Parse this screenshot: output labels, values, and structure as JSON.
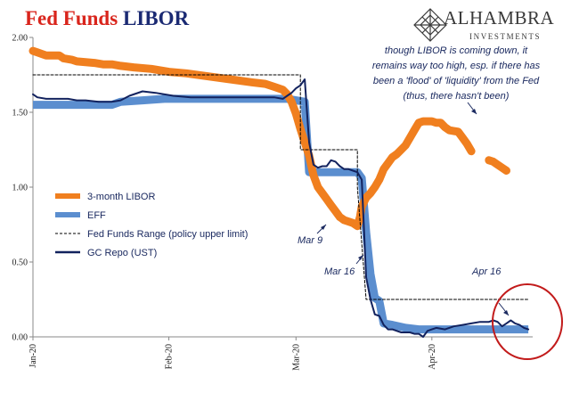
{
  "header": {
    "title_part1": "Fed Funds",
    "title_part2": "LIBOR",
    "logo_name": "ALHAMBRA",
    "logo_sub": "INVESTMENTS",
    "logo_icon": "diamond-lattice-icon"
  },
  "colors": {
    "title_red": "#d9251c",
    "title_navy": "#1b2a73",
    "libor": "#f07f1f",
    "effr": "#5b8ecf",
    "gc_repo": "#12225e",
    "range": "#000000",
    "circle": "#c21b1b"
  },
  "chart_data": {
    "type": "line",
    "title": "Fed Funds LIBOR",
    "ylim": [
      0,
      2
    ],
    "y_ticks": [
      "0.00",
      "0.50",
      "1.00",
      "1.50",
      "2.00"
    ],
    "x_ticks": [
      "Jan-20",
      "Feb-20",
      "Mar-20",
      "Apr-20"
    ],
    "x_tick_days": [
      0,
      31,
      60,
      91
    ],
    "x_range_days": [
      0,
      114
    ],
    "grid": false,
    "legend_position": "middle-left",
    "series": [
      {
        "name": "3-month LIBOR",
        "color": "#f07f1f",
        "width": 9,
        "segments": [
          [
            [
              0,
              1.91
            ],
            [
              1,
              1.9
            ],
            [
              2,
              1.89
            ],
            [
              3,
              1.88
            ],
            [
              6,
              1.88
            ],
            [
              7,
              1.86
            ],
            [
              9,
              1.85
            ],
            [
              10,
              1.84
            ],
            [
              14,
              1.83
            ],
            [
              16,
              1.82
            ],
            [
              18,
              1.82
            ],
            [
              20,
              1.81
            ],
            [
              23,
              1.8
            ],
            [
              27,
              1.79
            ],
            [
              31,
              1.77
            ],
            [
              35,
              1.76
            ],
            [
              40,
              1.74
            ],
            [
              45,
              1.72
            ],
            [
              50,
              1.7
            ],
            [
              53,
              1.69
            ],
            [
              55,
              1.67
            ],
            [
              57,
              1.65
            ],
            [
              58,
              1.62
            ],
            [
              59,
              1.57
            ],
            [
              60,
              1.49
            ],
            [
              61,
              1.39
            ],
            [
              62,
              1.3
            ],
            [
              63,
              1.21
            ],
            [
              64,
              1.08
            ],
            [
              65,
              1.0
            ],
            [
              66,
              0.96
            ],
            [
              67,
              0.92
            ],
            [
              68,
              0.88
            ],
            [
              69,
              0.84
            ],
            [
              70,
              0.8
            ],
            [
              71,
              0.78
            ],
            [
              72,
              0.77
            ],
            [
              73,
              0.76
            ],
            [
              74,
              0.74
            ],
            [
              74.6,
              0.8
            ],
            [
              75,
              0.87
            ],
            [
              76,
              0.93
            ],
            [
              77,
              0.96
            ],
            [
              78,
              1.0
            ],
            [
              79,
              1.05
            ],
            [
              80,
              1.12
            ],
            [
              81,
              1.16
            ],
            [
              82,
              1.2
            ],
            [
              83,
              1.22
            ],
            [
              84,
              1.25
            ],
            [
              85,
              1.28
            ],
            [
              86,
              1.33
            ],
            [
              87,
              1.38
            ],
            [
              88,
              1.43
            ],
            [
              89,
              1.44
            ],
            [
              91,
              1.44
            ],
            [
              92,
              1.43
            ],
            [
              93,
              1.43
            ],
            [
              94,
              1.4
            ],
            [
              95,
              1.38
            ],
            [
              97,
              1.37
            ],
            [
              98,
              1.33
            ],
            [
              99,
              1.29
            ],
            [
              100,
              1.24
            ]
          ],
          [
            [
              104,
              1.18
            ],
            [
              105,
              1.17
            ],
            [
              106,
              1.15
            ],
            [
              107,
              1.13
            ],
            [
              108,
              1.11
            ]
          ]
        ]
      },
      {
        "name": "EFF",
        "color": "#5b8ecf",
        "width": 9,
        "segments": [
          [
            [
              0,
              1.55
            ],
            [
              5,
              1.55
            ],
            [
              10,
              1.55
            ],
            [
              15,
              1.55
            ],
            [
              18,
              1.55
            ],
            [
              20,
              1.57
            ],
            [
              25,
              1.58
            ],
            [
              30,
              1.59
            ],
            [
              35,
              1.59
            ],
            [
              40,
              1.59
            ],
            [
              45,
              1.59
            ],
            [
              50,
              1.59
            ],
            [
              55,
              1.59
            ],
            [
              58,
              1.59
            ],
            [
              60,
              1.58
            ],
            [
              62,
              1.57
            ],
            [
              63,
              1.1
            ],
            [
              66,
              1.1
            ],
            [
              70,
              1.1
            ],
            [
              74,
              1.1
            ],
            [
              75,
              1.06
            ],
            [
              76,
              0.7
            ],
            [
              77,
              0.42
            ],
            [
              78,
              0.26
            ],
            [
              79,
              0.24
            ],
            [
              80,
              0.09
            ],
            [
              82,
              0.08
            ],
            [
              85,
              0.06
            ],
            [
              88,
              0.05
            ],
            [
              92,
              0.05
            ],
            [
              96,
              0.05
            ],
            [
              100,
              0.05
            ],
            [
              104,
              0.05
            ],
            [
              108,
              0.05
            ],
            [
              111,
              0.05
            ],
            [
              113,
              0.05
            ]
          ]
        ]
      },
      {
        "name": "Fed Funds Range (policy upper limit)",
        "color": "#000000",
        "dashed": true,
        "segments": [
          [
            [
              0,
              1.75
            ],
            [
              61,
              1.75
            ],
            [
              61,
              1.25
            ],
            [
              74,
              1.25
            ],
            [
              74,
              1.0
            ],
            [
              76,
              0.25
            ],
            [
              113,
              0.25
            ]
          ]
        ]
      },
      {
        "name": "GC Repo (UST)",
        "color": "#12225e",
        "width": 2,
        "segments": [
          [
            [
              0,
              1.62
            ],
            [
              1,
              1.6
            ],
            [
              3,
              1.59
            ],
            [
              5,
              1.59
            ],
            [
              8,
              1.59
            ],
            [
              10,
              1.58
            ],
            [
              12,
              1.58
            ],
            [
              15,
              1.57
            ],
            [
              18,
              1.57
            ],
            [
              20,
              1.58
            ],
            [
              22,
              1.61
            ],
            [
              25,
              1.64
            ],
            [
              28,
              1.63
            ],
            [
              32,
              1.61
            ],
            [
              36,
              1.6
            ],
            [
              40,
              1.6
            ],
            [
              44,
              1.6
            ],
            [
              48,
              1.6
            ],
            [
              52,
              1.6
            ],
            [
              55,
              1.6
            ],
            [
              57,
              1.59
            ],
            [
              58,
              1.61
            ],
            [
              59,
              1.63
            ],
            [
              60,
              1.66
            ],
            [
              61,
              1.68
            ],
            [
              62,
              1.72
            ],
            [
              63,
              1.3
            ],
            [
              64,
              1.15
            ],
            [
              65,
              1.13
            ],
            [
              66,
              1.14
            ],
            [
              67,
              1.14
            ],
            [
              68,
              1.18
            ],
            [
              69,
              1.17
            ],
            [
              70,
              1.14
            ],
            [
              71,
              1.12
            ],
            [
              72,
              1.12
            ],
            [
              73,
              1.11
            ],
            [
              74,
              1.1
            ],
            [
              75,
              1.05
            ],
            [
              76,
              0.4
            ],
            [
              77,
              0.25
            ],
            [
              78,
              0.15
            ],
            [
              79,
              0.14
            ],
            [
              80,
              0.08
            ],
            [
              81,
              0.05
            ],
            [
              82,
              0.05
            ],
            [
              84,
              0.03
            ],
            [
              86,
              0.03
            ],
            [
              87,
              0.02
            ],
            [
              88,
              0.02
            ],
            [
              89,
              0.0
            ],
            [
              90,
              0.04
            ],
            [
              91,
              0.05
            ],
            [
              92,
              0.06
            ],
            [
              94,
              0.05
            ],
            [
              96,
              0.07
            ],
            [
              98,
              0.08
            ],
            [
              100,
              0.09
            ],
            [
              102,
              0.1
            ],
            [
              104,
              0.1
            ],
            [
              105,
              0.11
            ],
            [
              106,
              0.1
            ],
            [
              107,
              0.07
            ],
            [
              108,
              0.09
            ],
            [
              109,
              0.11
            ],
            [
              110,
              0.09
            ],
            [
              111,
              0.08
            ],
            [
              112,
              0.06
            ],
            [
              113,
              0.05
            ]
          ]
        ]
      }
    ],
    "annotations": {
      "note_lines": [
        "though LIBOR is coming down, it",
        "remains way too high, esp. if there has",
        "been a 'flood' of 'liquidity' from the Fed",
        "(thus, there hasn't been)"
      ],
      "mar9": "Mar 9",
      "mar16": "Mar 16",
      "apr16": "Apr 16"
    }
  }
}
